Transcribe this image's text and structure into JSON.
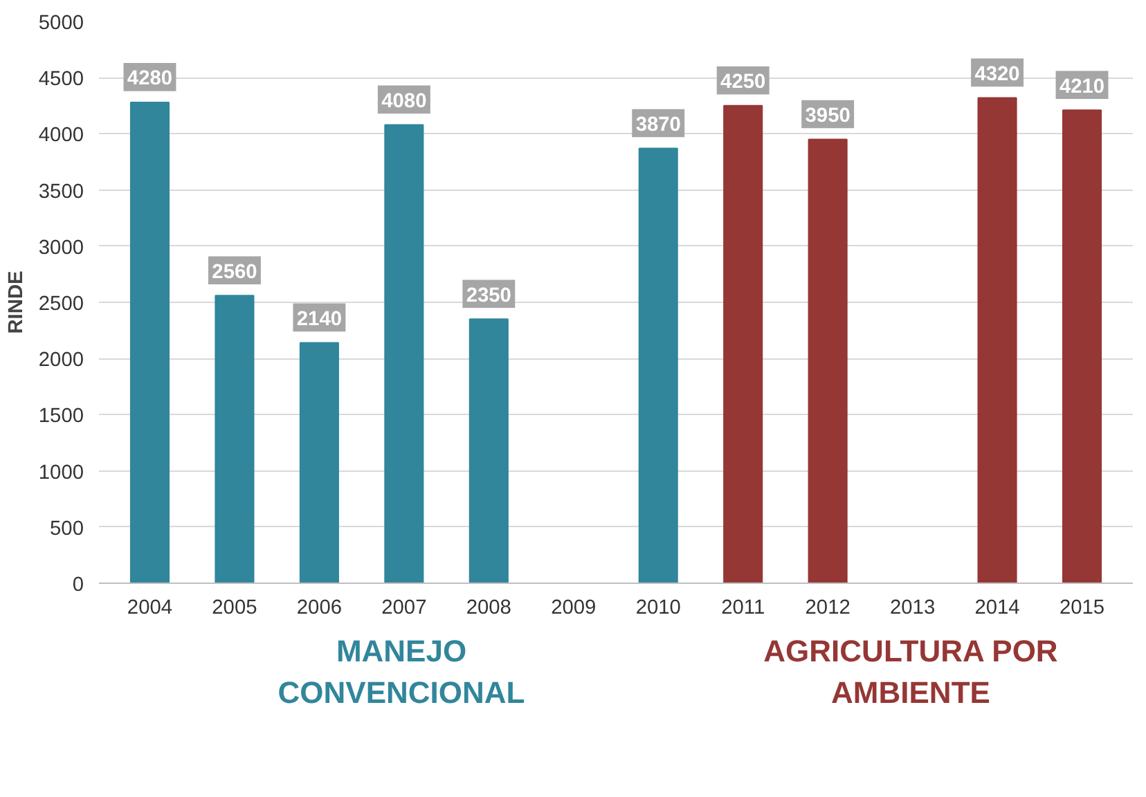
{
  "chart_data": {
    "type": "bar",
    "ylabel": "RINDE",
    "categories": [
      "2004",
      "2005",
      "2006",
      "2007",
      "2008",
      "2009",
      "2010",
      "2011",
      "2012",
      "2013",
      "2014",
      "2015"
    ],
    "series": [
      {
        "name": "MANEJO CONVENCIONAL",
        "color": "#31869b",
        "values": [
          4280,
          2560,
          2140,
          4080,
          2350,
          null,
          3870,
          null,
          null,
          null,
          null,
          null
        ]
      },
      {
        "name": "AGRICULTURA POR AMBIENTE",
        "color": "#953735",
        "values": [
          null,
          null,
          null,
          null,
          null,
          null,
          null,
          4250,
          3950,
          null,
          4320,
          4210
        ]
      }
    ],
    "ylim": [
      0,
      5000
    ],
    "yticks": [
      0,
      500,
      1000,
      1500,
      2000,
      2500,
      3000,
      3500,
      4000,
      4500,
      5000
    ],
    "grid": "y",
    "data_labels": true
  }
}
